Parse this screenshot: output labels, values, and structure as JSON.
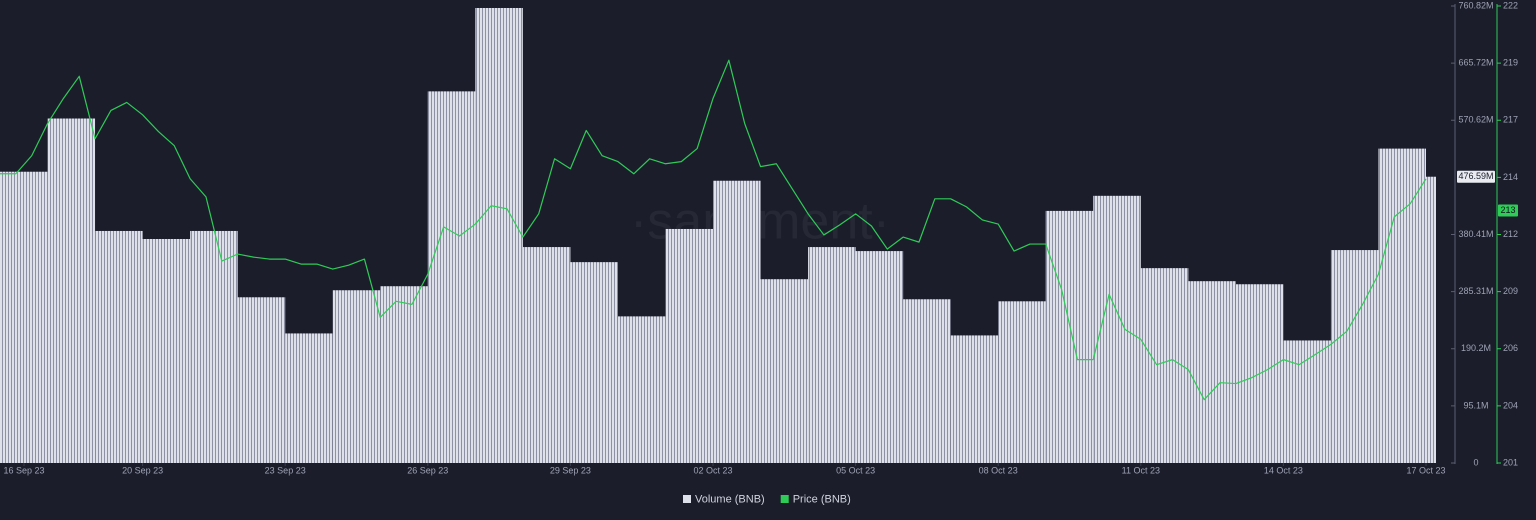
{
  "chart_data": {
    "type": "bar+line",
    "watermark": "·santiment·",
    "xlim": [
      "2023-09-17",
      "2023-10-17"
    ],
    "xticks": [
      {
        "value": "2023-09-16",
        "label": "16 Sep 23"
      },
      {
        "value": "2023-09-20",
        "label": "20 Sep 23"
      },
      {
        "value": "2023-09-23",
        "label": "23 Sep 23"
      },
      {
        "value": "2023-09-26",
        "label": "26 Sep 23"
      },
      {
        "value": "2023-09-29",
        "label": "29 Sep 23"
      },
      {
        "value": "2023-10-02",
        "label": "02 Oct 23"
      },
      {
        "value": "2023-10-05",
        "label": "05 Oct 23"
      },
      {
        "value": "2023-10-08",
        "label": "08 Oct 23"
      },
      {
        "value": "2023-10-11",
        "label": "11 Oct 23"
      },
      {
        "value": "2023-10-14",
        "label": "14 Oct 23"
      },
      {
        "value": "2023-10-17",
        "label": "17 Oct 23"
      }
    ],
    "ylim": [
      0,
      760820000
    ],
    "yticks": [
      0,
      {
        "value": 95102500,
        "label": "95.1M"
      },
      {
        "value": 190205000,
        "label": "190.2M"
      },
      {
        "value": 285307500,
        "label": "285.31M"
      },
      {
        "value": 380410000,
        "label": "380.41M"
      },
      {
        "value": 570615000,
        "label": "570.62M"
      },
      {
        "value": 665717500,
        "label": "665.72M"
      },
      {
        "value": 760820000,
        "label": "760.82M"
      }
    ],
    "y2lim": [
      201,
      222
    ],
    "y2ticks": [
      201,
      {
        "value": 203.625,
        "label": "204"
      },
      {
        "value": 206.25,
        "label": "206"
      },
      {
        "value": 208.875,
        "label": "209"
      },
      {
        "value": 211.5,
        "label": "212"
      },
      {
        "value": 214.125,
        "label": "214"
      },
      {
        "value": 216.75,
        "label": "217"
      },
      {
        "value": 219.375,
        "label": "219"
      },
      222
    ],
    "current_volume": {
      "value": 476590000,
      "label": "476.59M"
    },
    "current_price": {
      "value": 212.6,
      "label": "213"
    },
    "series": [
      {
        "name": "Volume (BNB)",
        "color": "#dfe1ea",
        "type": "bar",
        "x": [
          "2023-09-17",
          "2023-09-18",
          "2023-09-19",
          "2023-09-20",
          "2023-09-21",
          "2023-09-22",
          "2023-09-23",
          "2023-09-24",
          "2023-09-25",
          "2023-09-26",
          "2023-09-27",
          "2023-09-28",
          "2023-09-29",
          "2023-09-30",
          "2023-10-01",
          "2023-10-02",
          "2023-10-03",
          "2023-10-04",
          "2023-10-05",
          "2023-10-06",
          "2023-10-07",
          "2023-10-08",
          "2023-10-09",
          "2023-10-10",
          "2023-10-11",
          "2023-10-12",
          "2023-10-13",
          "2023-10-14",
          "2023-10-15",
          "2023-10-16",
          "2023-10-17"
        ],
        "values": [
          484900000,
          573500000,
          386300000,
          372900000,
          386300000,
          275900000,
          215700000,
          287600000,
          294300000,
          618700000,
          757500000,
          359500000,
          334400000,
          244100000,
          389600000,
          469900000,
          306000000,
          359500000,
          352800000,
          272600000,
          212400000,
          269200000,
          419700000,
          444800000,
          324400000,
          302700000,
          297600000,
          204000000,
          354500000,
          523400000,
          476590000
        ]
      },
      {
        "name": "Price (BNB)",
        "color": "#2ecc57",
        "type": "line",
        "axis": "y2",
        "x": [
          "2023-09-17T00:00",
          "2023-09-17T08:00",
          "2023-09-17T16:00",
          "2023-09-18T00:00",
          "2023-09-18T08:00",
          "2023-09-18T16:00",
          "2023-09-19T00:00",
          "2023-09-19T08:00",
          "2023-09-19T16:00",
          "2023-09-20T00:00",
          "2023-09-20T08:00",
          "2023-09-20T16:00",
          "2023-09-21T00:00",
          "2023-09-21T08:00",
          "2023-09-21T16:00",
          "2023-09-22T00:00",
          "2023-09-22T08:00",
          "2023-09-22T16:00",
          "2023-09-23T00:00",
          "2023-09-23T08:00",
          "2023-09-23T16:00",
          "2023-09-24T00:00",
          "2023-09-24T08:00",
          "2023-09-24T16:00",
          "2023-09-25T00:00",
          "2023-09-25T08:00",
          "2023-09-25T16:00",
          "2023-09-26T00:00",
          "2023-09-26T08:00",
          "2023-09-26T16:00",
          "2023-09-27T00:00",
          "2023-09-27T08:00",
          "2023-09-27T16:00",
          "2023-09-28T00:00",
          "2023-09-28T08:00",
          "2023-09-28T16:00",
          "2023-09-29T00:00",
          "2023-09-29T08:00",
          "2023-09-29T16:00",
          "2023-09-30T00:00",
          "2023-09-30T08:00",
          "2023-09-30T16:00",
          "2023-10-01T00:00",
          "2023-10-01T08:00",
          "2023-10-01T16:00",
          "2023-10-02T00:00",
          "2023-10-02T08:00",
          "2023-10-02T16:00",
          "2023-10-03T00:00",
          "2023-10-03T08:00",
          "2023-10-03T16:00",
          "2023-10-04T00:00",
          "2023-10-04T08:00",
          "2023-10-04T16:00",
          "2023-10-05T00:00",
          "2023-10-05T08:00",
          "2023-10-05T16:00",
          "2023-10-06T00:00",
          "2023-10-06T08:00",
          "2023-10-06T16:00",
          "2023-10-07T00:00",
          "2023-10-07T08:00",
          "2023-10-07T16:00",
          "2023-10-08T00:00",
          "2023-10-08T08:00",
          "2023-10-08T16:00",
          "2023-10-09T00:00",
          "2023-10-09T08:00",
          "2023-10-09T16:00",
          "2023-10-10T00:00",
          "2023-10-10T08:00",
          "2023-10-10T16:00",
          "2023-10-11T00:00",
          "2023-10-11T08:00",
          "2023-10-11T16:00",
          "2023-10-12T00:00",
          "2023-10-12T08:00",
          "2023-10-12T16:00",
          "2023-10-13T00:00",
          "2023-10-13T08:00",
          "2023-10-13T16:00",
          "2023-10-14T00:00",
          "2023-10-14T08:00",
          "2023-10-14T16:00",
          "2023-10-15T00:00",
          "2023-10-15T08:00",
          "2023-10-15T16:00",
          "2023-10-16T00:00",
          "2023-10-16T08:00",
          "2023-10-16T16:00",
          "2023-10-17T00:00"
        ],
        "values": [
          214.29,
          214.29,
          215.12,
          216.6,
          217.75,
          218.77,
          215.9,
          217.2,
          217.57,
          217.0,
          216.23,
          215.58,
          214.06,
          213.23,
          210.28,
          210.6,
          210.46,
          210.37,
          210.37,
          210.14,
          210.14,
          209.91,
          210.09,
          210.37,
          207.69,
          208.43,
          208.29,
          209.68,
          211.85,
          211.43,
          211.98,
          212.82,
          212.68,
          211.38,
          212.45,
          214.98,
          214.52,
          216.28,
          215.12,
          214.85,
          214.29,
          214.98,
          214.75,
          214.85,
          215.45,
          217.75,
          219.51,
          216.6,
          214.62,
          214.75,
          213.6,
          212.45,
          211.48,
          211.94,
          212.45,
          211.89,
          210.83,
          211.38,
          211.15,
          213.14,
          213.14,
          212.77,
          212.17,
          211.98,
          210.74,
          211.06,
          211.06,
          208.98,
          205.75,
          205.75,
          208.75,
          207.14,
          206.68,
          205.52,
          205.75,
          205.29,
          203.91,
          204.69,
          204.65,
          204.92,
          205.29,
          205.75,
          205.52,
          205.98,
          206.45,
          207.05,
          208.29,
          209.68,
          212.31,
          212.91,
          214.06
        ]
      }
    ]
  }
}
